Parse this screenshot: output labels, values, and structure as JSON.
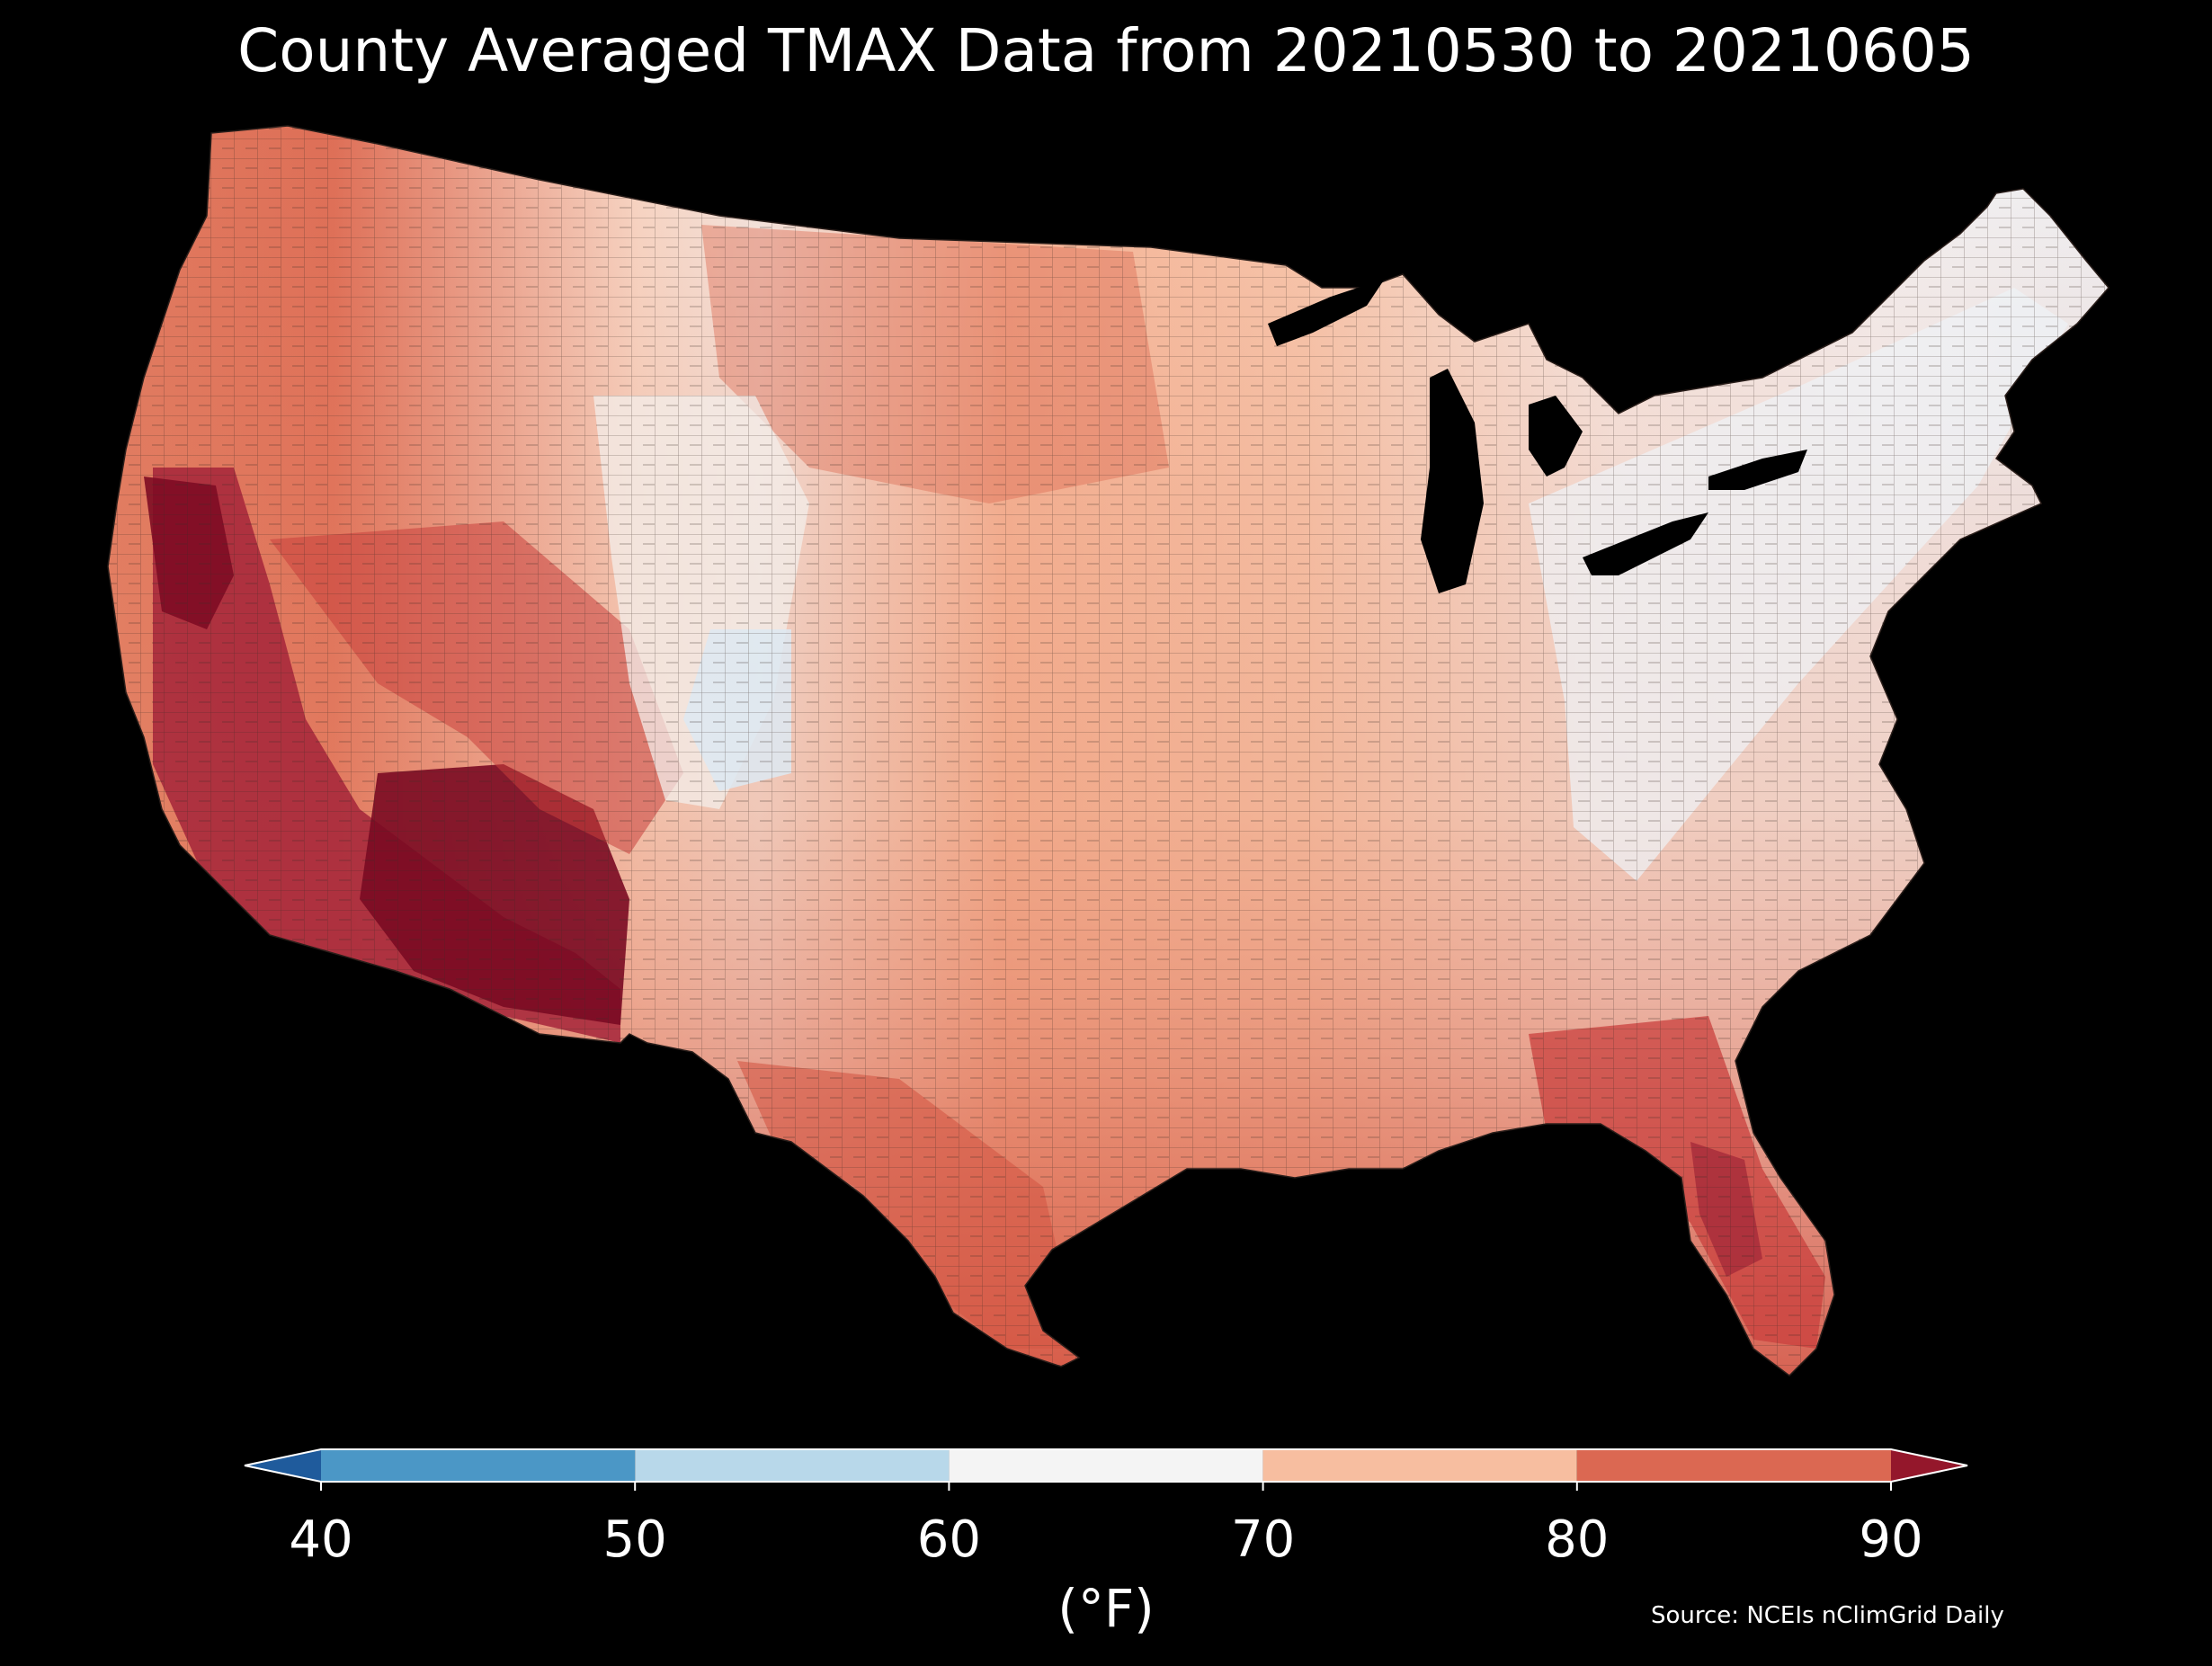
{
  "title": "County Averaged TMAX Data from 20210530 to 20210605",
  "colorbar": {
    "ticks": [
      "40",
      "50",
      "60",
      "70",
      "80",
      "90"
    ],
    "unit": "(°F)",
    "bins": [
      {
        "range": "<40",
        "color": "#1f5b9c"
      },
      {
        "range": "40-50",
        "color": "#4b97c6"
      },
      {
        "range": "50-60",
        "color": "#b8d8ea"
      },
      {
        "range": "60-70",
        "color": "#f4f4f4"
      },
      {
        "range": "70-80",
        "color": "#f7bea0"
      },
      {
        "range": "80-90",
        "color": "#db6852"
      },
      {
        "range": ">90",
        "color": "#94172b"
      }
    ]
  },
  "source": "Source: NCEIs nClimGrid Daily",
  "colors": {
    "background": "#000000",
    "county_border": "#3a2a25"
  }
}
